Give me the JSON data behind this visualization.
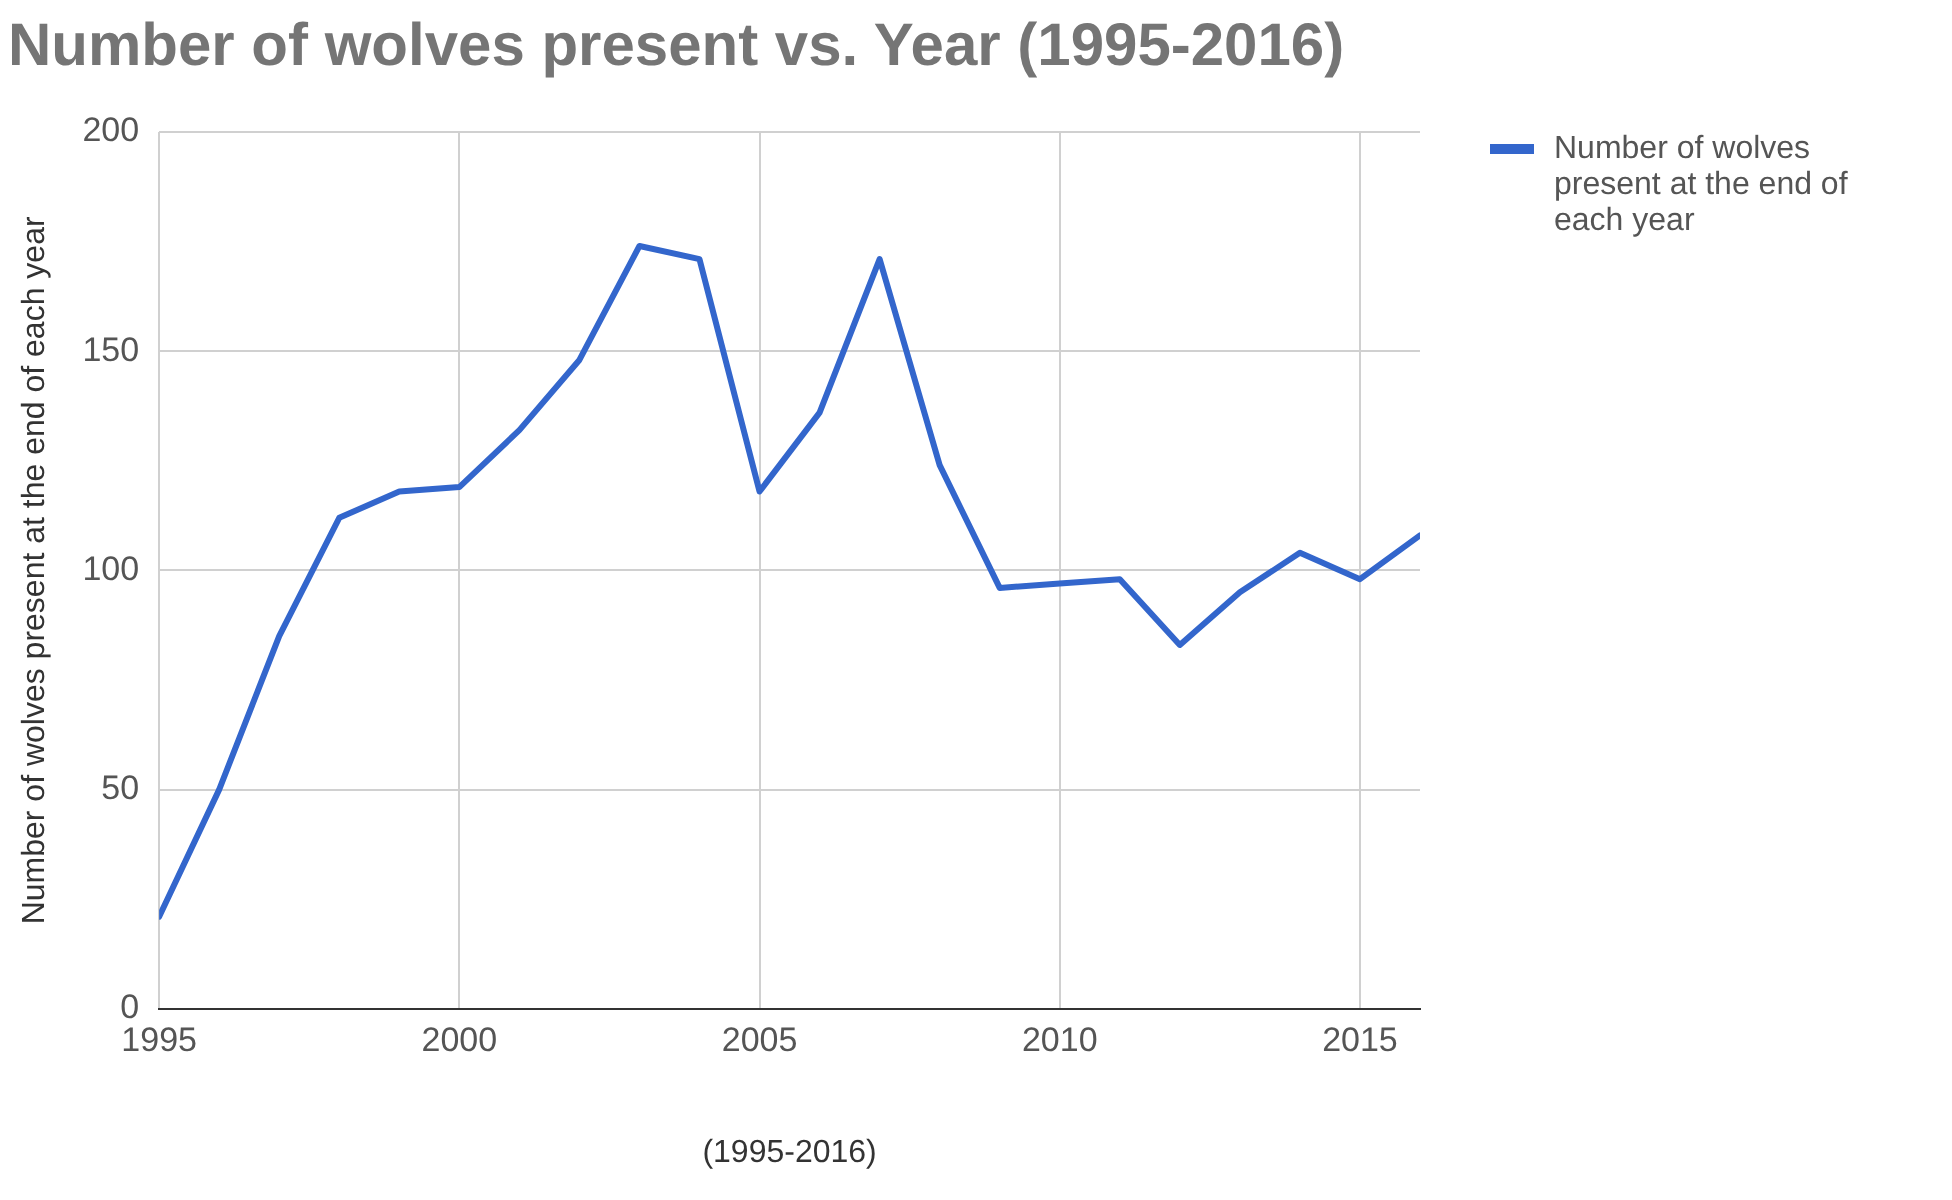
{
  "chart_data": {
    "type": "line",
    "title": "Number of wolves present vs. Year (1995-2016)",
    "xlabel": "(1995-2016)",
    "ylabel": "Number of wolves present at the end of each year",
    "x": [
      1995,
      1996,
      1997,
      1998,
      1999,
      2000,
      2001,
      2002,
      2003,
      2004,
      2005,
      2006,
      2007,
      2008,
      2009,
      2010,
      2011,
      2012,
      2013,
      2014,
      2015,
      2016
    ],
    "series": [
      {
        "name": "Number of wolves present at the end of each year",
        "color": "#3366cc",
        "values": [
          21,
          50,
          85,
          112,
          118,
          119,
          132,
          148,
          174,
          171,
          118,
          136,
          171,
          124,
          96,
          97,
          98,
          83,
          95,
          104,
          98,
          108
        ]
      }
    ],
    "xlim": [
      1995,
      2016
    ],
    "xticks": [
      1995,
      2000,
      2005,
      2010,
      2015
    ],
    "ylim": [
      0,
      200
    ],
    "yticks": [
      0,
      50,
      100,
      150,
      200
    ],
    "grid": true,
    "legend": "right",
    "marker": "none",
    "line_style": "solid"
  }
}
